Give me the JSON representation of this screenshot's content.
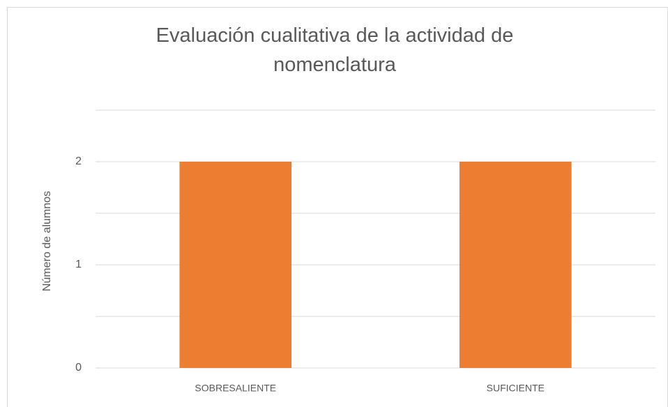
{
  "chart_data": {
    "type": "bar",
    "title": "Evaluación cualitativa de la actividad de nomenclatura",
    "y_label": "Número de alumnos",
    "categories": [
      "SOBRESALIENTE",
      "SUFICIENTE"
    ],
    "values": [
      2,
      2
    ],
    "color": "#ed7d31",
    "ylim": [
      0,
      2.5
    ],
    "yticks": [
      0,
      1,
      2
    ],
    "minor_yticks": [
      0.5,
      1.5,
      2.5
    ],
    "grid": true
  }
}
